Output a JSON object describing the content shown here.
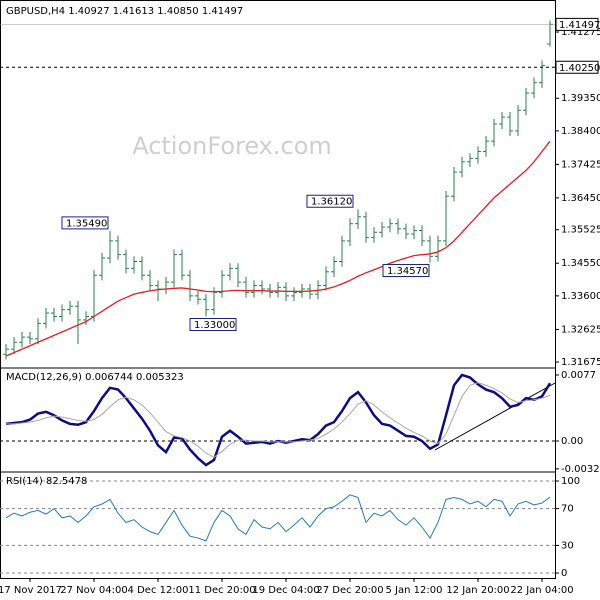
{
  "chart_data": [
    {
      "type": "ohlc",
      "title": "GBPUSD,H4  1.40927 1.41613 1.40850 1.41497",
      "watermark": "ActionForex.com",
      "color": "#2f7d4f",
      "categories": [
        null,
        null,
        null,
        "17 Nov 2017",
        null,
        null,
        null,
        null,
        null,
        null,
        null,
        "27 Nov 04:00",
        null,
        null,
        null,
        null,
        null,
        null,
        null,
        "4 Dec 12:00",
        null,
        null,
        null,
        null,
        null,
        null,
        null,
        "11 Dec 20:00",
        null,
        null,
        null,
        null,
        null,
        null,
        null,
        "19 Dec 04:00",
        null,
        null,
        null,
        null,
        null,
        null,
        null,
        "27 Dec 20:00",
        null,
        null,
        null,
        null,
        null,
        null,
        null,
        "5 Jan 12:00",
        null,
        null,
        null,
        null,
        null,
        null,
        null,
        "12 Jan 20:00",
        null,
        null,
        null,
        null,
        null,
        null,
        null,
        "22 Jan 04:00",
        null
      ],
      "open": [
        1.319,
        1.3205,
        1.3225,
        1.324,
        1.3235,
        1.328,
        1.331,
        1.33,
        1.332,
        1.333,
        1.329,
        1.33,
        1.342,
        1.347,
        1.352,
        1.348,
        1.344,
        1.346,
        1.342,
        1.339,
        1.338,
        1.34,
        1.348,
        1.342,
        1.336,
        1.335,
        1.332,
        1.337,
        1.342,
        1.344,
        1.34,
        1.337,
        1.339,
        1.338,
        1.337,
        1.3385,
        1.336,
        1.337,
        1.338,
        1.3365,
        1.339,
        1.343,
        1.346,
        1.352,
        1.357,
        1.359,
        1.353,
        1.3545,
        1.356,
        1.357,
        1.3555,
        1.354,
        1.355,
        1.352,
        1.3475,
        1.352,
        1.365,
        1.372,
        1.375,
        1.376,
        1.378,
        1.381,
        1.386,
        1.388,
        1.384,
        1.39,
        1.395,
        1.398,
        1.40927
      ],
      "high": [
        1.322,
        1.324,
        1.3255,
        1.3255,
        1.3295,
        1.3325,
        1.3325,
        1.3335,
        1.3345,
        1.3345,
        1.3315,
        1.3435,
        1.3485,
        1.3549,
        1.3535,
        1.3495,
        1.3475,
        1.3475,
        1.3435,
        1.3405,
        1.3415,
        1.3495,
        1.3495,
        1.3435,
        1.3375,
        1.3365,
        1.3385,
        1.3435,
        1.3455,
        1.3455,
        1.3415,
        1.3405,
        1.3405,
        1.3395,
        1.34,
        1.34,
        1.3385,
        1.3395,
        1.3395,
        1.3405,
        1.3445,
        1.3475,
        1.3535,
        1.3585,
        1.3612,
        1.3605,
        1.356,
        1.3575,
        1.3585,
        1.3585,
        1.357,
        1.3565,
        1.3565,
        1.3535,
        1.3535,
        1.3665,
        1.3735,
        1.3765,
        1.3775,
        1.3795,
        1.3825,
        1.3875,
        1.3895,
        1.3895,
        1.3915,
        1.3965,
        1.3995,
        1.4045,
        1.41613
      ],
      "low": [
        1.3175,
        1.319,
        1.321,
        1.322,
        1.322,
        1.3265,
        1.3285,
        1.3285,
        1.3305,
        1.322,
        1.3275,
        1.3285,
        1.3405,
        1.3455,
        1.3465,
        1.3425,
        1.3425,
        1.3405,
        1.3375,
        1.3345,
        1.3365,
        1.3385,
        1.3405,
        1.3345,
        1.3335,
        1.33,
        1.3305,
        1.3355,
        1.3405,
        1.3385,
        1.3355,
        1.3355,
        1.3365,
        1.3355,
        1.3355,
        1.3345,
        1.3345,
        1.3355,
        1.335,
        1.335,
        1.3375,
        1.3415,
        1.3445,
        1.3505,
        1.3555,
        1.3515,
        1.3515,
        1.353,
        1.3545,
        1.354,
        1.3525,
        1.3525,
        1.3505,
        1.3457,
        1.346,
        1.3505,
        1.3635,
        1.3705,
        1.3735,
        1.3745,
        1.3765,
        1.3795,
        1.3845,
        1.3825,
        1.3825,
        1.3885,
        1.3935,
        1.3965,
        1.4085
      ],
      "close": [
        1.3205,
        1.3225,
        1.324,
        1.3235,
        1.328,
        1.331,
        1.33,
        1.332,
        1.333,
        1.329,
        1.33,
        1.342,
        1.347,
        1.352,
        1.348,
        1.344,
        1.346,
        1.342,
        1.339,
        1.338,
        1.34,
        1.348,
        1.342,
        1.336,
        1.335,
        1.332,
        1.337,
        1.342,
        1.344,
        1.34,
        1.337,
        1.339,
        1.338,
        1.337,
        1.3385,
        1.336,
        1.337,
        1.338,
        1.3365,
        1.339,
        1.343,
        1.346,
        1.352,
        1.357,
        1.359,
        1.353,
        1.3545,
        1.356,
        1.357,
        1.3555,
        1.354,
        1.355,
        1.352,
        1.3475,
        1.352,
        1.365,
        1.372,
        1.375,
        1.376,
        1.378,
        1.381,
        1.386,
        1.388,
        1.384,
        1.39,
        1.395,
        1.398,
        1.403,
        1.41497
      ],
      "overlay": {
        "color": "#e0202a",
        "values": [
          1.3185,
          1.3195,
          1.3205,
          1.3215,
          1.3225,
          1.3235,
          1.3245,
          1.3255,
          1.3265,
          1.3275,
          1.3285,
          1.33,
          1.3315,
          1.333,
          1.3345,
          1.3355,
          1.3365,
          1.337,
          1.3375,
          1.3378,
          1.338,
          1.3382,
          1.3383,
          1.338,
          1.3377,
          1.3373,
          1.3372,
          1.3373,
          1.3375,
          1.3376,
          1.3375,
          1.3375,
          1.3375,
          1.3374,
          1.3374,
          1.3373,
          1.3373,
          1.3373,
          1.3374,
          1.3376,
          1.338,
          1.3386,
          1.3395,
          1.3405,
          1.3417,
          1.3427,
          1.3436,
          1.3445,
          1.3455,
          1.3463,
          1.347,
          1.3477,
          1.348,
          1.3482,
          1.3488,
          1.35,
          1.352,
          1.3545,
          1.357,
          1.3595,
          1.362,
          1.3645,
          1.3665,
          1.3685,
          1.3705,
          1.3725,
          1.375,
          1.378,
          1.381
        ]
      },
      "ylim": [
        1.3156,
        1.4209
      ],
      "yticks": [
        1.31675,
        1.32625,
        {
          "value": 1.336,
          "label": "1.33600"
        },
        {
          "value": 1.3455,
          "label": "1.34550"
        },
        1.35525,
        {
          "value": 1.3645,
          "label": "1.36450"
        },
        1.37425,
        {
          "value": 1.384,
          "label": "1.38400"
        },
        {
          "value": 1.3935,
          "label": "1.39350"
        },
        1.41275
      ],
      "price_lines": [
        {
          "value": 1.4025,
          "label": "1.40250"
        }
      ],
      "current_price": {
        "value": 1.41497,
        "label": "1.41497"
      },
      "annotations": [
        {
          "value": 1.3549,
          "label": "1.35490"
        },
        {
          "value": 1.33,
          "label": "1.33000"
        },
        {
          "value": 1.3612,
          "label": "1.36120"
        },
        {
          "value": 1.3457,
          "label": "1.34570"
        }
      ]
    },
    {
      "type": "line",
      "title": "MACD(12,26,9) 0.006744 0.005323",
      "series": [
        {
          "color": "#0d0d80",
          "values": [
            0.002,
            0.0021,
            0.0022,
            0.0025,
            0.0032,
            0.0034,
            0.003,
            0.0024,
            0.002,
            0.0019,
            0.0022,
            0.0035,
            0.005,
            0.0062,
            0.006,
            0.005,
            0.0038,
            0.0026,
            0.0012,
            -0.0005,
            -0.0013,
            0.0004,
            0.0003,
            -0.001,
            -0.002,
            -0.0028,
            -0.0022,
            0.0005,
            0.0012,
            0.0005,
            -0.0003,
            -0.0002,
            -0.0001,
            -0.0003,
            0.0,
            -0.0002,
            0.0,
            0.0002,
            0.0001,
            0.0008,
            0.0018,
            0.0022,
            0.0035,
            0.005,
            0.0057,
            0.0045,
            0.003,
            0.002,
            0.0018,
            0.0012,
            0.0006,
            0.0005,
            0.0,
            -0.0009,
            -0.0004,
            0.003,
            0.0065,
            0.0077,
            0.0074,
            0.0066,
            0.006,
            0.0057,
            0.005,
            0.004,
            0.0042,
            0.005,
            0.0048,
            0.0052,
            0.006744
          ]
        },
        {
          "color": "#a8a8a8",
          "values": [
            0.002,
            0.002,
            0.0021,
            0.0022,
            0.0024,
            0.0027,
            0.0029,
            0.0028,
            0.0026,
            0.0024,
            0.0023,
            0.0025,
            0.0031,
            0.004,
            0.0048,
            0.0051,
            0.0048,
            0.0042,
            0.0033,
            0.0022,
            0.0011,
            0.0006,
            0.0004,
            0.0,
            -0.0006,
            -0.0014,
            -0.0019,
            -0.0012,
            -0.0004,
            0.0001,
            0.0001,
            0.0,
            0.0,
            -0.0001,
            -0.0001,
            -0.0001,
            -0.0001,
            0.0,
            0.0001,
            0.0003,
            0.0008,
            0.0014,
            0.0022,
            0.0032,
            0.0043,
            0.0047,
            0.0042,
            0.0034,
            0.0027,
            0.0021,
            0.0015,
            0.001,
            0.0006,
            0.0,
            -0.0003,
            0.0008,
            0.003,
            0.0052,
            0.0065,
            0.0068,
            0.0065,
            0.0061,
            0.0056,
            0.0049,
            0.0045,
            0.0047,
            0.0048,
            0.005,
            0.005323
          ]
        }
      ],
      "ylim": [
        -0.00338,
        0.00828
      ],
      "yticks": [
        -0.003249,
        {
          "value": 0,
          "label": "0.00"
        },
        0.0077
      ],
      "zero_line": true
    },
    {
      "type": "line",
      "title": "RSI(14) 82.5478",
      "series": [
        {
          "color": "#2a7ab8",
          "values": [
            60,
            65,
            62,
            66,
            68,
            64,
            70,
            60,
            62,
            55,
            62,
            72,
            75,
            80,
            65,
            55,
            58,
            50,
            45,
            42,
            55,
            68,
            52,
            40,
            38,
            35,
            55,
            68,
            62,
            48,
            42,
            58,
            50,
            48,
            55,
            45,
            52,
            60,
            50,
            62,
            70,
            72,
            78,
            85,
            82,
            55,
            65,
            62,
            68,
            58,
            52,
            60,
            50,
            38,
            55,
            80,
            82,
            80,
            75,
            78,
            72,
            80,
            78,
            62,
            75,
            78,
            74,
            76,
            82.5478
          ]
        }
      ],
      "ylim": [
        -5.4,
        107.6
      ],
      "yticks": [
        0,
        30,
        70,
        100
      ],
      "grid": true
    }
  ]
}
